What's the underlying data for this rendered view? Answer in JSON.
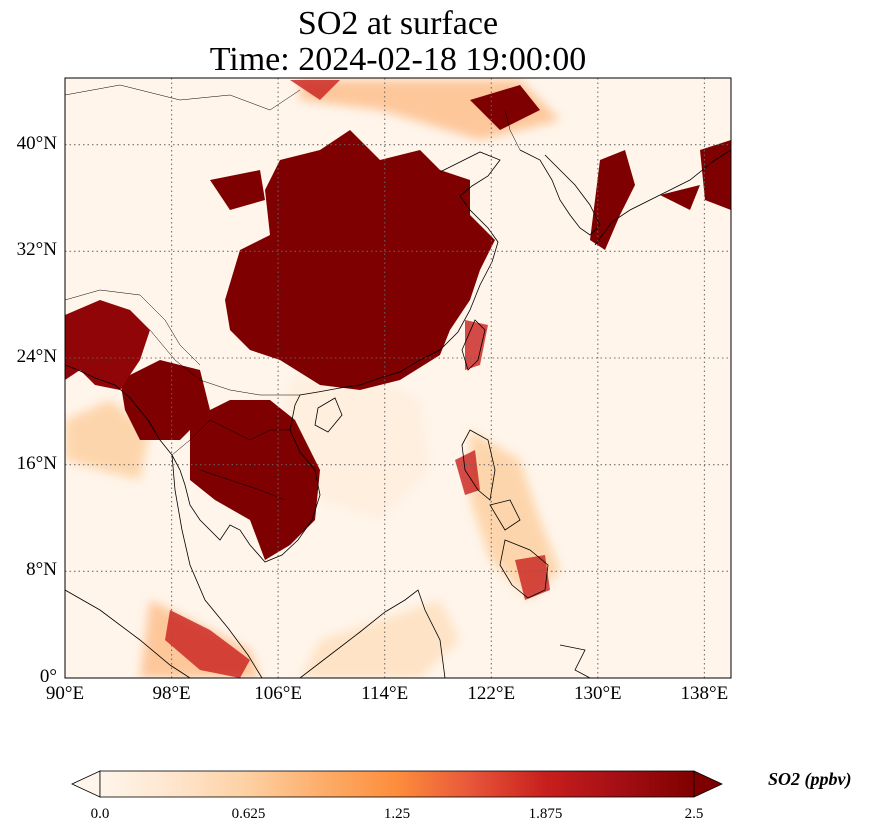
{
  "title": {
    "line1": "SO2 at surface",
    "line2": "Time: 2024-02-18 19:00:00"
  },
  "map": {
    "extent": {
      "lon": [
        90,
        140
      ],
      "lat": [
        0,
        45
      ]
    },
    "x_ticks": [
      {
        "lon": 90,
        "label": "90°E"
      },
      {
        "lon": 98,
        "label": "98°E"
      },
      {
        "lon": 106,
        "label": "106°E"
      },
      {
        "lon": 114,
        "label": "114°E"
      },
      {
        "lon": 122,
        "label": "122°E"
      },
      {
        "lon": 130,
        "label": "130°E"
      },
      {
        "lon": 138,
        "label": "138°E"
      }
    ],
    "y_ticks": [
      {
        "lat": 0,
        "label": "0°"
      },
      {
        "lat": 8,
        "label": "8°N"
      },
      {
        "lat": 16,
        "label": "16°N"
      },
      {
        "lat": 24,
        "label": "24°N"
      },
      {
        "lat": 32,
        "label": "32°N"
      },
      {
        "lat": 40,
        "label": "40°N"
      }
    ],
    "gridlines": "dotted"
  },
  "colorbar": {
    "label": "SO2 (ppbv)",
    "min": 0.0,
    "max": 2.5,
    "extend": "both",
    "ticks": [
      {
        "value": 0.0,
        "label": "0.0"
      },
      {
        "value": 0.625,
        "label": "0.625"
      },
      {
        "value": 1.25,
        "label": "1.25"
      },
      {
        "value": 1.875,
        "label": "1.875"
      },
      {
        "value": 2.5,
        "label": "2.5"
      }
    ],
    "colors": [
      "#fff5eb",
      "#fee6ce",
      "#fdd0a2",
      "#fdae6b",
      "#fd8d3c",
      "#f16913",
      "#d94801",
      "#a50f15",
      "#7f0000"
    ]
  }
}
